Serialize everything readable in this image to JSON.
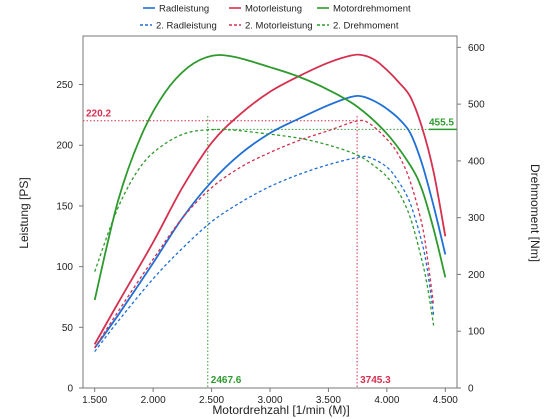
{
  "chart_data": {
    "type": "line",
    "xlabel": "Motordrehzahl [1/min (M)]",
    "ylabel_left": "Leistung [PS]",
    "ylabel_right": "Drehmoment [Nm]",
    "xlim": [
      1400,
      4600
    ],
    "ylim_left": [
      0,
      290
    ],
    "ylim_right": [
      0,
      620
    ],
    "x_ticks": [
      1500,
      2000,
      2500,
      3000,
      3500,
      4000,
      4500
    ],
    "x_tick_labels": [
      "1.500",
      "2.000",
      "2.500",
      "3.000",
      "3.500",
      "4.000",
      "4.500"
    ],
    "y_left_ticks": [
      0,
      50,
      100,
      150,
      200,
      250
    ],
    "y_right_ticks": [
      0,
      100,
      200,
      300,
      400,
      500,
      600
    ],
    "grid": false,
    "legend_position": "top",
    "colors": {
      "blue": "#1f6fd6",
      "red": "#d6304f",
      "green": "#2e9a2e"
    },
    "series": [
      {
        "name": "Radleistung",
        "axis": "left",
        "style": "solid",
        "color": "#1f6fd6",
        "x": [
          1500,
          1700,
          2000,
          2250,
          2500,
          2750,
          3000,
          3250,
          3500,
          3700,
          3800,
          3900,
          4000,
          4100,
          4200,
          4300,
          4400,
          4500
        ],
        "y": [
          33,
          60,
          103,
          140,
          170,
          193,
          210,
          222,
          233,
          240,
          240,
          236,
          230,
          222,
          210,
          185,
          150,
          110
        ]
      },
      {
        "name": "Motorleistung",
        "axis": "left",
        "style": "solid",
        "color": "#d6304f",
        "x": [
          1500,
          1700,
          2000,
          2250,
          2500,
          2750,
          3000,
          3250,
          3500,
          3700,
          3800,
          3900,
          4000,
          4100,
          4200,
          4300,
          4400,
          4500
        ],
        "y": [
          36,
          70,
          120,
          165,
          202,
          226,
          244,
          257,
          268,
          274,
          274,
          270,
          262,
          252,
          240,
          215,
          178,
          125
        ]
      },
      {
        "name": "Motordrehmoment",
        "axis": "right",
        "style": "solid",
        "color": "#2e9a2e",
        "x": [
          1500,
          1700,
          1900,
          2100,
          2300,
          2500,
          2700,
          3000,
          3250,
          3500,
          3750,
          4000,
          4200,
          4300,
          4400,
          4500
        ],
        "y": [
          155,
          330,
          445,
          520,
          565,
          585,
          583,
          565,
          548,
          525,
          495,
          448,
          392,
          350,
          280,
          195
        ]
      },
      {
        "name": "2. Radleistung",
        "axis": "left",
        "style": "dashed",
        "color": "#1f6fd6",
        "x": [
          1500,
          1700,
          2000,
          2250,
          2500,
          2750,
          3000,
          3250,
          3500,
          3750,
          3850,
          4000,
          4100,
          4200,
          4300,
          4350,
          4400
        ],
        "y": [
          30,
          55,
          90,
          115,
          137,
          153,
          166,
          176,
          184,
          190,
          190,
          182,
          170,
          152,
          120,
          95,
          60
        ]
      },
      {
        "name": "2. Motorleistung",
        "axis": "left",
        "style": "dashed",
        "color": "#d6304f",
        "x": [
          1500,
          1700,
          2000,
          2250,
          2500,
          2750,
          3000,
          3250,
          3500,
          3745,
          3850,
          4000,
          4100,
          4200,
          4300,
          4350,
          4400
        ],
        "y": [
          33,
          63,
          106,
          140,
          165,
          182,
          194,
          204,
          212,
          220,
          218,
          205,
          192,
          170,
          135,
          105,
          68
        ]
      },
      {
        "name": "2. Drehmoment",
        "axis": "right",
        "style": "dashed",
        "color": "#2e9a2e",
        "x": [
          1500,
          1700,
          1900,
          2100,
          2300,
          2500,
          2700,
          3000,
          3250,
          3500,
          3750,
          3900,
          4000,
          4100,
          4200,
          4300,
          4350,
          4400
        ],
        "y": [
          205,
          318,
          392,
          430,
          450,
          455,
          454,
          447,
          440,
          428,
          410,
          390,
          372,
          345,
          300,
          225,
          175,
          110
        ]
      }
    ],
    "annotations": [
      {
        "text": "220.2",
        "axis": "left",
        "orientation": "horizontal",
        "value": 220.2,
        "color": "#d6304f"
      },
      {
        "text": "455.5",
        "axis": "right",
        "orientation": "horizontal",
        "value": 455.5,
        "color": "#2e9a2e"
      },
      {
        "text": "2467.6",
        "orientation": "vertical",
        "value": 2467.6,
        "color": "#2e9a2e"
      },
      {
        "text": "3745.3",
        "orientation": "vertical",
        "value": 3745.3,
        "color": "#d6304f"
      }
    ]
  }
}
